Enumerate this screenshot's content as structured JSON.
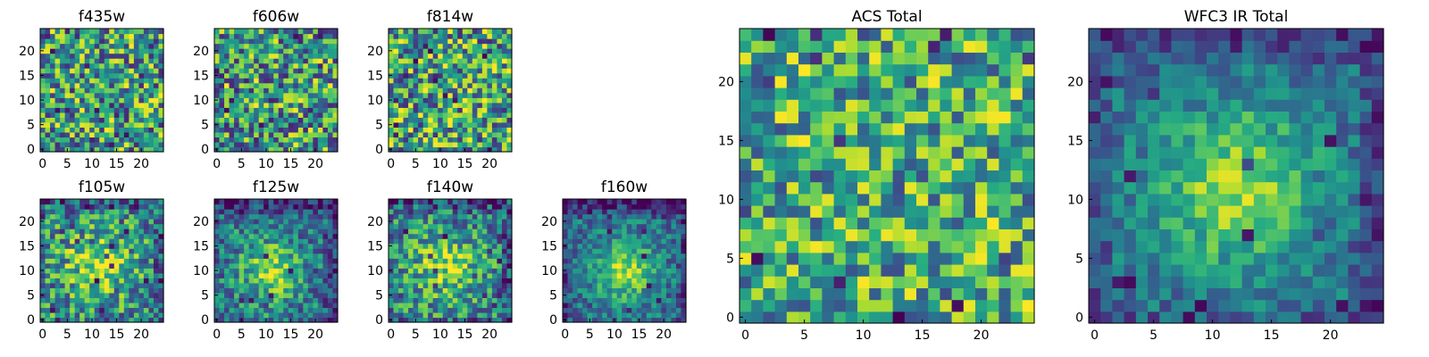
{
  "chart_data": {
    "type": "heatmap",
    "colormap": "viridis",
    "grid": false,
    "panels": [
      {
        "key": "f435w",
        "title": "f435w",
        "xticks": [
          "0",
          "5",
          "10",
          "15",
          "20"
        ],
        "yticks": [
          "0",
          "5",
          "10",
          "15",
          "20"
        ],
        "xlim": [
          -0.5,
          24.5
        ],
        "ylim": [
          -0.5,
          24.5
        ],
        "pattern": "noise",
        "noise": 0.45,
        "base": 0.55,
        "seed": 11
      },
      {
        "key": "f606w",
        "title": "f606w",
        "xticks": [
          "0",
          "5",
          "10",
          "15",
          "20"
        ],
        "yticks": [
          "0",
          "5",
          "10",
          "15",
          "20"
        ],
        "xlim": [
          -0.5,
          24.5
        ],
        "ylim": [
          -0.5,
          24.5
        ],
        "pattern": "noise",
        "noise": 0.45,
        "base": 0.55,
        "seed": 23
      },
      {
        "key": "f814w",
        "title": "f814w",
        "xticks": [
          "0",
          "5",
          "10",
          "15",
          "20"
        ],
        "yticks": [
          "0",
          "5",
          "10",
          "15",
          "20"
        ],
        "xlim": [
          -0.5,
          24.5
        ],
        "ylim": [
          -0.5,
          24.5
        ],
        "pattern": "noise",
        "noise": 0.45,
        "base": 0.58,
        "seed": 37
      },
      {
        "key": "f105w",
        "title": "f105w",
        "xticks": [
          "0",
          "5",
          "10",
          "15",
          "20"
        ],
        "yticks": [
          "0",
          "5",
          "10",
          "15",
          "20"
        ],
        "xlim": [
          -0.5,
          24.5
        ],
        "ylim": [
          -0.5,
          24.5
        ],
        "pattern": "source",
        "center": [
          11,
          11
        ],
        "sigma": 4.5,
        "amp": 0.35,
        "noise": 0.35,
        "base": 0.5,
        "seed": 41
      },
      {
        "key": "f125w",
        "title": "f125w",
        "xticks": [
          "0",
          "5",
          "10",
          "15",
          "20"
        ],
        "yticks": [
          "0",
          "5",
          "10",
          "15",
          "20"
        ],
        "xlim": [
          -0.5,
          24.5
        ],
        "ylim": [
          -0.5,
          24.5
        ],
        "pattern": "source",
        "center": [
          11,
          10
        ],
        "sigma": 4.0,
        "amp": 0.45,
        "noise": 0.28,
        "base": 0.42,
        "seed": 53
      },
      {
        "key": "f140w",
        "title": "f140w",
        "xticks": [
          "0",
          "5",
          "10",
          "15",
          "20"
        ],
        "yticks": [
          "0",
          "5",
          "10",
          "15",
          "20"
        ],
        "xlim": [
          -0.5,
          24.5
        ],
        "ylim": [
          -0.5,
          24.5
        ],
        "pattern": "source",
        "center": [
          11,
          11
        ],
        "sigma": 4.5,
        "amp": 0.35,
        "noise": 0.32,
        "base": 0.48,
        "seed": 67
      },
      {
        "key": "f160w",
        "title": "f160w",
        "xticks": [
          "0",
          "5",
          "10",
          "15",
          "20"
        ],
        "yticks": [
          "0",
          "5",
          "10",
          "15",
          "20"
        ],
        "xlim": [
          -0.5,
          24.5
        ],
        "ylim": [
          -0.5,
          24.5
        ],
        "pattern": "source",
        "center": [
          12,
          10
        ],
        "sigma": 4.0,
        "amp": 0.5,
        "noise": 0.22,
        "base": 0.38,
        "seed": 79
      },
      {
        "key": "acs_total",
        "title": "ACS Total",
        "xticks": [
          "0",
          "5",
          "10",
          "15",
          "20"
        ],
        "yticks": [
          "0",
          "5",
          "10",
          "15",
          "20"
        ],
        "xlim": [
          -0.5,
          24.5
        ],
        "ylim": [
          -0.5,
          24.5
        ],
        "pattern": "noise",
        "noise": 0.38,
        "base": 0.62,
        "seed": 97
      },
      {
        "key": "wfc3_ir_total",
        "title": "WFC3 IR Total",
        "xticks": [
          "0",
          "5",
          "10",
          "15",
          "20"
        ],
        "yticks": [
          "0",
          "5",
          "10",
          "15",
          "20"
        ],
        "xlim": [
          -0.5,
          24.5
        ],
        "ylim": [
          -0.5,
          24.5
        ],
        "pattern": "source",
        "center": [
          12,
          11
        ],
        "sigma": 5.0,
        "amp": 0.5,
        "noise": 0.18,
        "base": 0.35,
        "seed": 113
      }
    ]
  }
}
